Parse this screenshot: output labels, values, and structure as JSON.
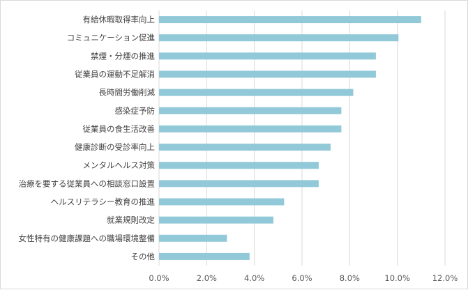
{
  "chart_data": {
    "type": "bar",
    "orientation": "horizontal",
    "categories": [
      "有給休暇取得率向上",
      "コミュニケーション促進",
      "禁煙・分煙の推進",
      "従業員の運動不足解消",
      "長時間労働削減",
      "感染症予防",
      "従業員の食生活改善",
      "健康診断の受診率向上",
      "メンタルヘルス対策",
      "治療を要する従業員への相談窓口設置",
      "ヘルスリテラシー教育の推進",
      "就業規則改定",
      "女性特有の健康課題への職場環境整備",
      "その他"
    ],
    "values": [
      11.0,
      10.05,
      9.1,
      9.1,
      8.15,
      7.65,
      7.65,
      7.2,
      6.7,
      6.7,
      5.25,
      4.8,
      2.85,
      3.8
    ],
    "xlim": [
      0,
      12
    ],
    "xticks": [
      "0.0%",
      "2.0%",
      "4.0%",
      "6.0%",
      "8.0%",
      "10.0%",
      "12.0%"
    ],
    "grid": "vertical",
    "legend": "none",
    "bar_color": "#92c9d8",
    "grid_color": "#d9d9d9"
  }
}
